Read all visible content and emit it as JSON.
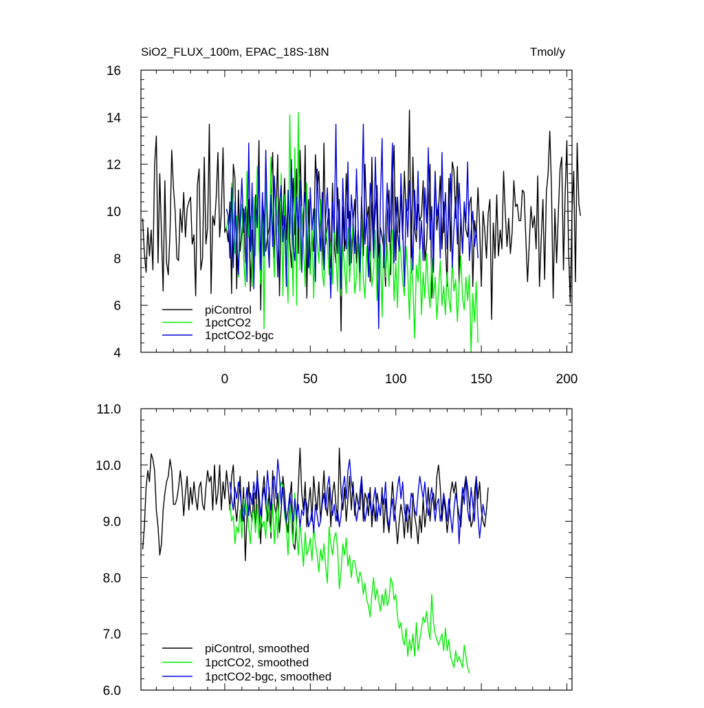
{
  "chart_data": [
    {
      "type": "line",
      "title": "SiO2_FLUX_100m, EPAC_18S-18N",
      "units": "Tmol/y",
      "ylim": [
        4,
        16
      ],
      "yticks": [
        4,
        6,
        8,
        10,
        12,
        14,
        16
      ],
      "xlim": [
        -49,
        203
      ],
      "xticks": [
        0,
        50,
        100,
        150,
        200
      ],
      "legend_position": "bottom-left",
      "series": [
        {
          "name": "piControl",
          "color": "#000000",
          "x_start": -48,
          "values": [
            9.7,
            8.2,
            7.4,
            9.3,
            8.1,
            9.2,
            7.5,
            12.0,
            13.2,
            7.8,
            11.6,
            9.0,
            6.6,
            11.3,
            7.8,
            7.3,
            9.1,
            12.6,
            11.0,
            10.0,
            8.0,
            7.9,
            10.1,
            9.1,
            10.8,
            8.9,
            10.1,
            10.4,
            10.6,
            8.6,
            9.0,
            6.4,
            11.1,
            11.8,
            7.5,
            8.0,
            12.3,
            8.6,
            9.3,
            13.7,
            6.5,
            9.8,
            9.4,
            10.6,
            12.5,
            8.9,
            9.9,
            12.7,
            9.1,
            9.3,
            8.7,
            10.4,
            6.5,
            12.0,
            11.4,
            6.7,
            10.9,
            8.3,
            9.1,
            10.1,
            7.8,
            9.8,
            10.5,
            6.6,
            9.2,
            7.3,
            10.7,
            9.6,
            13.0,
            5.8,
            10.5,
            9.7,
            8.3,
            8.9,
            9.3,
            11.1,
            12.5,
            8.0,
            9.9,
            12.4,
            6.4,
            10.3,
            9.4,
            11.4,
            8.8,
            10.6,
            8.7,
            7.6,
            11.4,
            9.0,
            11.8,
            8.2,
            12.6,
            10.2,
            8.9,
            12.8,
            6.3,
            10.5,
            7.6,
            9.1,
            8.3,
            12.4,
            10.9,
            11.7,
            9.8,
            7.7,
            12.9,
            8.6,
            9.5,
            10.1,
            7.6,
            11.2,
            8.5,
            7.8,
            11.0,
            9.3,
            4.9,
            10.2,
            8.3,
            11.6,
            9.7,
            10.0,
            7.8,
            9.6,
            10.5,
            7.8,
            9.2,
            7.6,
            10.6,
            8.1,
            12.0,
            9.6,
            10.2,
            7.0,
            12.3,
            8.8,
            10.0,
            11.1,
            8.0,
            9.3,
            8.9,
            8.4,
            6.8,
            9.8,
            10.9,
            7.3,
            11.2,
            12.8,
            7.9,
            10.6,
            9.1,
            10.7,
            8.8,
            11.7,
            9.9,
            10.1,
            14.3,
            7.4,
            12.3,
            9.3,
            8.7,
            10.3,
            9.6,
            9.8,
            11.3,
            7.9,
            8.6,
            10.5,
            12.0,
            6.3,
            8.9,
            11.7,
            9.2,
            10.1,
            11.5,
            8.4,
            10.4,
            8.6,
            6.8,
            11.4,
            8.3,
            12.1,
            11.7,
            9.7,
            11.9,
            6.9,
            9.9,
            8.2,
            10.3,
            9.2,
            8.9,
            10.3,
            10.6,
            6.8,
            9.6,
            8.9,
            11.0,
            9.4,
            6.8,
            10.0,
            9.2,
            8.0,
            9.9,
            10.5,
            5.4,
            9.5,
            8.0,
            10.7,
            8.1,
            9.2,
            8.4,
            11.7,
            9.9,
            8.5,
            9.7,
            8.2,
            9.1,
            11.3,
            10.2,
            10.3,
            9.6,
            9.6,
            10.9,
            10.8,
            8.9,
            7.0,
            8.6,
            10.2,
            9.3,
            9.8,
            8.4,
            11.5,
            6.8,
            8.8,
            10.5,
            7.1,
            10.8,
            11.6,
            13.4,
            11.1,
            6.3,
            10.1,
            7.8,
            9.9,
            11.8,
            12.3,
            7.5,
            10.7,
            13.0,
            8.3,
            6.1,
            10.0,
            11.7,
            7.0,
            12.9,
            10.3,
            9.8
          ]
        },
        {
          "name": "1pctCO2",
          "color": "#00ee00",
          "x_start": 1,
          "values": [
            9.2,
            9.8,
            8.6,
            11.2,
            9.7,
            8.2,
            9.8,
            7.2,
            9.2,
            10.3,
            8.0,
            6.8,
            11.7,
            8.9,
            9.8,
            6.8,
            10.6,
            8.1,
            11.9,
            8.4,
            6.9,
            10.6,
            5.0,
            11.3,
            8.8,
            7.7,
            12.3,
            9.0,
            7.2,
            10.6,
            9.4,
            8.3,
            11.6,
            6.4,
            10.7,
            7.8,
            6.1,
            14.1,
            9.3,
            6.4,
            12.7,
            6.0,
            14.2,
            7.5,
            10.2,
            8.6,
            6.8,
            11.2,
            8.0,
            7.3,
            9.5,
            6.3,
            10.1,
            8.7,
            7.8,
            10.5,
            7.4,
            6.8,
            9.3,
            8.6,
            7.3,
            8.7,
            6.9,
            9.6,
            8.2,
            6.6,
            10.0,
            6.4,
            8.5,
            7.7,
            6.5,
            9.3,
            7.0,
            8.6,
            9.4,
            6.5,
            7.2,
            8.8,
            6.6,
            9.7,
            7.1,
            6.3,
            8.5,
            7.3,
            8.3,
            6.8,
            7.5,
            9.2,
            6.2,
            7.9,
            8.6,
            5.5,
            9.0,
            7.2,
            8.6,
            6.8,
            8.3,
            9.2,
            6.2,
            7.8,
            5.9,
            8.9,
            8.1,
            7.0,
            6.4,
            8.5,
            7.4,
            5.4,
            8.0,
            6.8,
            4.6,
            7.7,
            7.0,
            8.5,
            5.6,
            7.4,
            6.3,
            8.2,
            6.7,
            5.9,
            8.0,
            6.3,
            7.2,
            5.4,
            6.6,
            7.9,
            6.0,
            6.8,
            5.6,
            7.4,
            6.3,
            5.7,
            7.9,
            6.6,
            7.1,
            5.3,
            6.9,
            8.1,
            6.3,
            5.8,
            7.2,
            6.2,
            7.3,
            4.0,
            6.5,
            5.3,
            7.0,
            4.4
          ]
        },
        {
          "name": "1pctCO2-bgc",
          "color": "#0000dd",
          "x_start": 1,
          "values": [
            10.1,
            9.8,
            8.0,
            11.0,
            7.6,
            10.4,
            8.9,
            7.3,
            9.6,
            11.4,
            9.1,
            10.2,
            7.0,
            12.9,
            8.3,
            11.2,
            6.7,
            10.4,
            9.3,
            11.9,
            7.5,
            10.8,
            8.1,
            12.6,
            9.2,
            7.6,
            10.7,
            8.5,
            11.5,
            9.7,
            7.2,
            10.3,
            11.1,
            8.7,
            9.8,
            6.8,
            10.9,
            9.0,
            12.2,
            8.5,
            7.9,
            10.6,
            9.3,
            11.3,
            7.4,
            9.9,
            10.8,
            8.9,
            7.6,
            11.0,
            9.2,
            10.1,
            7.0,
            11.8,
            9.6,
            8.3,
            10.8,
            7.5,
            9.7,
            11.0,
            8.6,
            6.3,
            10.4,
            9.1,
            13.7,
            8.2,
            10.5,
            6.7,
            11.4,
            9.0,
            8.4,
            12.1,
            7.7,
            10.7,
            9.6,
            8.2,
            11.8,
            9.3,
            7.4,
            10.1,
            13.7,
            8.6,
            9.9,
            7.2,
            11.2,
            10.2,
            8.0,
            12.3,
            9.6,
            5.0,
            10.4,
            13.1,
            7.6,
            9.4,
            11.2,
            8.7,
            10.0,
            12.9,
            7.8,
            10.6,
            9.1,
            8.3,
            11.6,
            9.4,
            6.8,
            10.5,
            8.9,
            11.3,
            9.8,
            7.5,
            10.9,
            9.2,
            11.7,
            8.4,
            9.6,
            7.9,
            11.0,
            9.5,
            12.7,
            8.8,
            10.2,
            7.4,
            11.6,
            9.8,
            10.3,
            8.0,
            12.5,
            9.1,
            10.8,
            8.4,
            10.0,
            11.6,
            7.6,
            9.3,
            10.6,
            8.6,
            11.2,
            9.7,
            8.2,
            10.4,
            9.5,
            12.1,
            7.9,
            9.1,
            10.0,
            8.5,
            9.2,
            8.0
          ]
        }
      ]
    },
    {
      "type": "line",
      "title": "",
      "ylim": [
        6.0,
        11.0
      ],
      "yticks": [
        "6.0",
        "7.0",
        "8.0",
        "9.0",
        "10.0",
        "11.0"
      ],
      "xlim": [
        -49,
        203
      ],
      "xticks": [
        0,
        50,
        100,
        150,
        200
      ],
      "legend_position": "bottom-left",
      "series": [
        {
          "name": "piControl, smoothed",
          "color": "#000000",
          "x_start": -48,
          "values": [
            8.5,
            8.9,
            9.6,
            9.9,
            9.7,
            10.2,
            10.1,
            9.9,
            9.2,
            8.9,
            8.4,
            8.6,
            9.2,
            9.5,
            9.7,
            9.8,
            10.1,
            9.9,
            9.3,
            9.3,
            9.4,
            9.6,
            9.9,
            9.6,
            9.1,
            9.5,
            9.8,
            9.2,
            9.6,
            9.3,
            9.7,
            9.4,
            9.2,
            9.6,
            9.7,
            9.3,
            9.2,
            9.6,
            9.9,
            9.7,
            9.8,
            9.2,
            10.0,
            9.3,
            9.5,
            10.0,
            9.2,
            9.7,
            9.4,
            9.9,
            9.6,
            9.2,
            9.8,
            10.0,
            9.3,
            9.0,
            9.4,
            9.8,
            9.0,
            9.6,
            8.3,
            9.1,
            9.7,
            9.2,
            9.0,
            9.5,
            8.8,
            9.9,
            9.2,
            8.6,
            9.5,
            9.8,
            9.3,
            9.0,
            9.6,
            8.7,
            9.9,
            9.3,
            9.1,
            9.5,
            8.8,
            9.2,
            9.8,
            9.5,
            9.0,
            8.8,
            9.4,
            9.7,
            8.6,
            8.5,
            9.0,
            9.6,
            10.3,
            9.5,
            9.2,
            9.7,
            8.9,
            9.3,
            9.6,
            9.0,
            9.8,
            9.4,
            9.2,
            9.7,
            9.0,
            9.4,
            9.9,
            9.3,
            9.1,
            9.6,
            8.9,
            9.5,
            9.7,
            9.3,
            9.0,
            10.3,
            9.5,
            9.2,
            9.6,
            9.0,
            9.4,
            9.8,
            9.2,
            9.7,
            9.1,
            9.5,
            9.3,
            9.2,
            9.7,
            9.0,
            9.5,
            9.4,
            9.1,
            9.6,
            8.9,
            9.3,
            9.0,
            9.5,
            9.3,
            9.1,
            9.6,
            8.8,
            9.4,
            9.0,
            8.8,
            9.2,
            9.7,
            9.3,
            9.0,
            8.6,
            9.0,
            9.3,
            9.1,
            8.7,
            9.3,
            8.8,
            9.2,
            8.7,
            9.5,
            9.1,
            8.9,
            8.6,
            9.1,
            8.8,
            9.4,
            8.9,
            9.2,
            9.6,
            9.0,
            9.4,
            9.5,
            9.2,
            9.8,
            10.0,
            9.6,
            9.0,
            9.4,
            9.2,
            8.8,
            9.1,
            9.5,
            9.7,
            9.5,
            9.7,
            9.3,
            9.1,
            8.9,
            9.4,
            9.6,
            9.8,
            9.6,
            9.3,
            8.9,
            9.0,
            9.5,
            9.8,
            9.4,
            9.7,
            9.2,
            9.0,
            8.9,
            9.2,
            9.6
          ]
        },
        {
          "name": "1pctCO2, smoothed",
          "color": "#00ee00",
          "x_start": 3,
          "values": [
            9.3,
            9.0,
            9.1,
            8.6,
            8.9,
            8.8,
            9.2,
            8.7,
            9.4,
            9.1,
            9.3,
            8.9,
            8.6,
            9.1,
            9.2,
            8.8,
            9.3,
            8.7,
            9.1,
            8.9,
            9.0,
            8.7,
            9.4,
            9.0,
            8.8,
            9.3,
            8.6,
            9.2,
            8.7,
            9.5,
            9.7,
            9.6,
            9.1,
            8.9,
            8.4,
            9.3,
            8.9,
            8.6,
            9.5,
            8.8,
            8.4,
            9.0,
            8.6,
            8.2,
            8.8,
            8.4,
            8.5,
            8.7,
            8.3,
            8.9,
            8.6,
            8.4,
            8.1,
            8.5,
            8.3,
            8.6,
            8.2,
            7.9,
            8.9,
            8.6,
            8.4,
            8.7,
            8.8,
            8.5,
            7.8,
            8.1,
            8.6,
            8.4,
            8.7,
            8.2,
            8.4,
            8.0,
            8.3,
            8.3,
            8.1,
            7.9,
            8.1,
            8.0,
            7.7,
            7.9,
            7.6,
            7.5,
            7.3,
            7.7,
            8.0,
            7.6,
            7.8,
            7.6,
            7.4,
            7.7,
            7.5,
            7.8,
            7.5,
            7.6,
            8.0,
            7.9,
            7.6,
            7.7,
            7.3,
            7.1,
            7.2,
            6.9,
            6.8,
            7.1,
            6.6,
            6.9,
            6.7,
            7.0,
            6.6,
            7.2,
            6.7,
            6.9,
            7.1,
            7.3,
            7.2,
            7.4,
            7.1,
            6.9,
            7.7,
            7.2,
            7.0,
            6.9,
            6.8,
            6.9,
            7.0,
            6.7,
            7.1,
            6.7,
            6.9,
            6.6,
            6.5,
            6.4,
            6.7,
            6.5,
            6.6,
            6.5,
            6.4,
            6.8,
            6.6,
            6.4,
            6.3
          ]
        },
        {
          "name": "1pctCO2-bgc, smoothed",
          "color": "#0000dd",
          "x_start": 3,
          "values": [
            9.7,
            9.4,
            9.2,
            9.6,
            9.4,
            9.7,
            9.5,
            9.2,
            9.0,
            9.3,
            9.6,
            9.1,
            9.5,
            9.3,
            9.7,
            9.4,
            9.8,
            9.5,
            9.1,
            9.4,
            9.6,
            9.3,
            9.9,
            9.5,
            9.2,
            9.7,
            9.8,
            9.4,
            10.1,
            9.8,
            9.3,
            9.6,
            9.2,
            9.0,
            9.2,
            9.5,
            9.2,
            9.0,
            9.4,
            9.1,
            9.3,
            8.9,
            9.2,
            9.1,
            9.4,
            9.3,
            8.9,
            9.0,
            9.2,
            8.8,
            9.3,
            9.1,
            8.9,
            9.0,
            9.3,
            9.5,
            9.2,
            9.6,
            9.8,
            9.4,
            9.1,
            9.3,
            9.0,
            9.2,
            8.9,
            9.1,
            9.6,
            9.8,
            9.4,
            9.9,
            10.1,
            9.7,
            9.5,
            9.3,
            9.0,
            9.2,
            9.5,
            9.8,
            9.3,
            9.0,
            9.2,
            9.5,
            9.3,
            9.1,
            9.4,
            9.6,
            9.0,
            9.3,
            9.1,
            9.5,
            9.3,
            9.7,
            9.1,
            8.9,
            9.2,
            9.4,
            9.0,
            9.3,
            9.6,
            9.8,
            9.4,
            9.7,
            9.2,
            9.0,
            9.3,
            9.1,
            9.5,
            9.4,
            9.2,
            9.1,
            9.5,
            9.8,
            9.6,
            9.4,
            9.7,
            9.3,
            9.1,
            9.4,
            9.6,
            9.3,
            9.0,
            9.3,
            9.4,
            9.0,
            9.2,
            9.5,
            9.3,
            9.0,
            9.4,
            9.1,
            8.8,
            9.2,
            9.5,
            9.3,
            8.6,
            9.2,
            9.6,
            9.3,
            9.8,
            9.2,
            9.0,
            9.6,
            9.3,
            9.0,
            9.8,
            9.1,
            8.7,
            9.0,
            9.3,
            9.1
          ]
        }
      ]
    }
  ]
}
